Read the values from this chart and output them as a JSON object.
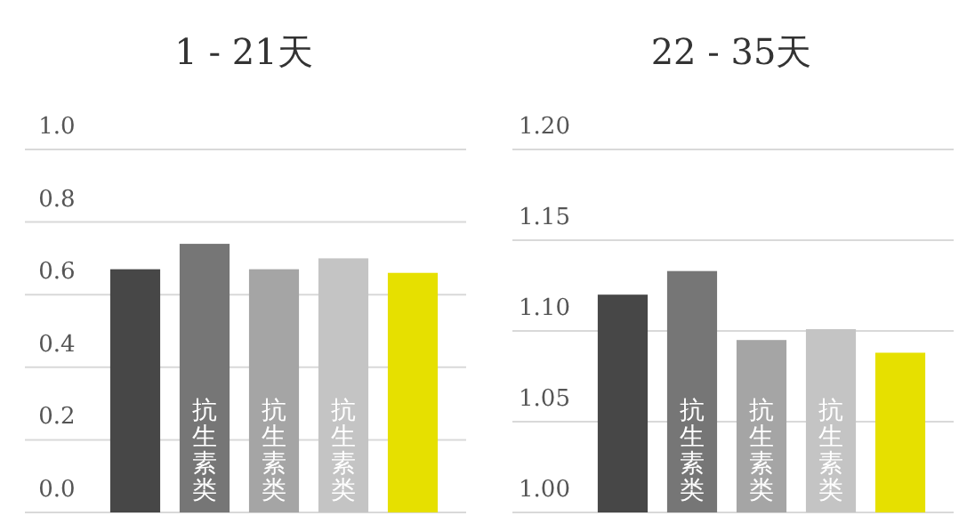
{
  "chart_data": [
    {
      "type": "bar",
      "title": "1 - 21天",
      "categories": [
        null,
        "抗生素类",
        "抗生素类",
        "抗生素类",
        null
      ],
      "values": [
        0.67,
        0.74,
        0.67,
        0.7,
        0.66
      ],
      "colors": [
        "#474747",
        "#767676",
        "#a5a5a5",
        "#c4c4c4",
        "#e6e000"
      ],
      "ylim": [
        0,
        1.0
      ],
      "yticks": [
        {
          "value": 0,
          "label": "0.0"
        },
        0.2,
        0.4,
        0.6,
        0.8,
        {
          "value": 1,
          "label": "1.0"
        }
      ],
      "grid": "y"
    },
    {
      "type": "bar",
      "title": "22 - 35天",
      "categories": [
        null,
        "抗生素类",
        "抗生素类",
        "抗生素类",
        null
      ],
      "values": [
        1.12,
        1.133,
        1.095,
        1.101,
        1.088
      ],
      "colors": [
        "#474747",
        "#767676",
        "#a5a5a5",
        "#c4c4c4",
        "#e6e000"
      ],
      "ylim": [
        1.0,
        1.2
      ],
      "yticks": [
        {
          "value": 1,
          "label": "1.00"
        },
        1.05,
        {
          "value": 1.1,
          "label": "1.10"
        },
        1.15,
        {
          "value": 1.2,
          "label": "1.20"
        }
      ],
      "grid": "y"
    }
  ]
}
